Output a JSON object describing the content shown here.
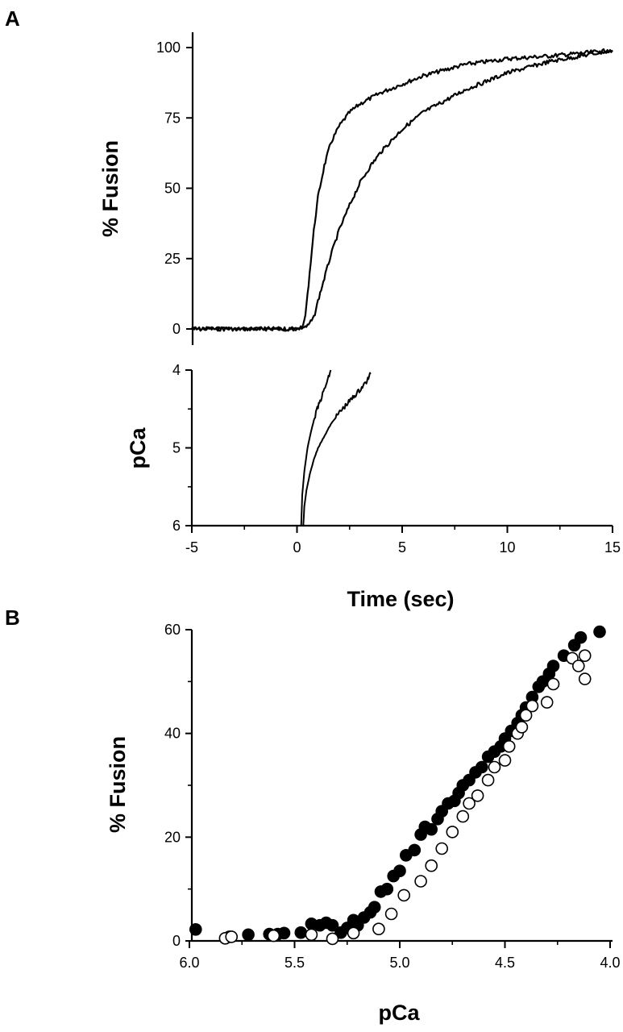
{
  "panel_labels": {
    "a": "A",
    "b": "B"
  },
  "chart_data": [
    {
      "id": "A-top",
      "type": "line",
      "ylabel": "% Fusion",
      "xlim": [
        -5,
        15
      ],
      "ylim": [
        0,
        100
      ],
      "yticks": [
        0,
        25,
        50,
        75,
        100
      ],
      "ytick_labels": [
        "0",
        "25",
        "50",
        "75",
        "100"
      ],
      "grid": false,
      "series": [
        {
          "x": [
            -5,
            -3,
            -1,
            0,
            0.3,
            0.4,
            0.5,
            0.6,
            0.8,
            1.0,
            1.3,
            1.6,
            2.0,
            2.5,
            3.0,
            4.0,
            5.0,
            6.0,
            7.0,
            8.0,
            9.0,
            10.0,
            12.0,
            15.0
          ],
          "y": [
            0,
            0,
            0,
            0,
            1,
            5,
            12,
            20,
            35,
            47,
            58,
            66,
            72,
            77,
            80,
            84,
            87,
            90,
            92,
            94,
            95,
            96,
            97,
            99
          ]
        },
        {
          "x": [
            -5,
            -3,
            -1,
            0,
            0.5,
            0.8,
            1.0,
            1.3,
            1.6,
            2.0,
            2.5,
            3.0,
            3.5,
            4.0,
            5.0,
            6.0,
            7.0,
            8.0,
            9.0,
            10.0,
            12.0,
            15.0
          ],
          "y": [
            0,
            0,
            0,
            0,
            1,
            4,
            10,
            18,
            26,
            35,
            44,
            52,
            58,
            63,
            71,
            77,
            81,
            85,
            88,
            91,
            95,
            99
          ]
        }
      ]
    },
    {
      "id": "A-bottom",
      "type": "line",
      "xlabel": "Time (sec)",
      "ylabel": "pCa",
      "xlim": [
        -5,
        15
      ],
      "ylim": [
        6,
        4
      ],
      "xticks": [
        -5,
        0,
        5,
        10,
        15
      ],
      "xtick_labels": [
        "-5",
        "0",
        "5",
        "10",
        "15"
      ],
      "yticks": [
        4,
        5,
        6
      ],
      "ytick_labels": [
        "4",
        "5",
        "6"
      ],
      "grid": false,
      "series": [
        {
          "x": [
            0.2,
            0.25,
            0.35,
            0.5,
            0.7,
            0.9,
            1.1,
            1.3,
            1.5,
            1.6
          ],
          "y": [
            6.0,
            5.6,
            5.3,
            5.0,
            4.75,
            4.55,
            4.4,
            4.25,
            4.1,
            4.0
          ]
        },
        {
          "x": [
            0.3,
            0.35,
            0.45,
            0.6,
            0.8,
            1.0,
            1.3,
            1.6,
            2.0,
            2.5,
            3.0,
            3.3,
            3.5
          ],
          "y": [
            6.0,
            5.75,
            5.55,
            5.35,
            5.15,
            5.0,
            4.85,
            4.7,
            4.55,
            4.4,
            4.25,
            4.15,
            4.05
          ]
        }
      ]
    },
    {
      "id": "B",
      "type": "scatter",
      "xlabel": "pCa",
      "ylabel": "% Fusion",
      "xlim": [
        6.0,
        4.0
      ],
      "ylim": [
        0,
        60
      ],
      "xticks": [
        6.0,
        5.5,
        5.0,
        4.5,
        4.0
      ],
      "xtick_labels": [
        "6.0",
        "5.5",
        "5.0",
        "4.5",
        "4.0"
      ],
      "yticks": [
        0,
        20,
        40,
        60
      ],
      "ytick_labels": [
        "0",
        "20",
        "40",
        "60"
      ],
      "grid": false,
      "series": [
        {
          "marker": "filled-circle",
          "x": [
            5.97,
            5.81,
            5.72,
            5.62,
            5.58,
            5.55,
            5.47,
            5.42,
            5.38,
            5.35,
            5.32,
            5.28,
            5.25,
            5.22,
            5.2,
            5.17,
            5.14,
            5.12,
            5.09,
            5.06,
            5.03,
            5.0,
            4.97,
            4.93,
            4.9,
            4.88,
            4.85,
            4.82,
            4.8,
            4.77,
            4.74,
            4.72,
            4.7,
            4.67,
            4.64,
            4.61,
            4.58,
            4.55,
            4.52,
            4.5,
            4.47,
            4.44,
            4.42,
            4.4,
            4.37,
            4.34,
            4.32,
            4.29,
            4.27,
            4.22,
            4.17,
            4.14,
            4.05
          ],
          "y": [
            2.2,
            0.8,
            1.2,
            1.3,
            1.3,
            1.5,
            1.6,
            3.3,
            3.0,
            3.5,
            3.0,
            1.6,
            2.5,
            4.0,
            3.0,
            4.5,
            5.5,
            6.5,
            9.5,
            10.0,
            12.5,
            13.5,
            16.5,
            17.5,
            20.5,
            22.0,
            21.5,
            23.5,
            25.0,
            26.5,
            27.0,
            28.5,
            30.0,
            31.0,
            32.5,
            33.5,
            35.5,
            36.5,
            37.5,
            39.0,
            40.5,
            42.0,
            43.5,
            45.0,
            47.0,
            49.0,
            50.0,
            51.5,
            53.0,
            55.0,
            57.0,
            58.5,
            59.6
          ]
        },
        {
          "marker": "open-circle",
          "x": [
            5.83,
            5.8,
            5.6,
            5.42,
            5.32,
            5.22,
            5.1,
            5.04,
            4.98,
            4.9,
            4.85,
            4.8,
            4.75,
            4.7,
            4.67,
            4.63,
            4.58,
            4.55,
            4.5,
            4.48,
            4.44,
            4.42,
            4.4,
            4.37,
            4.3,
            4.27,
            4.18,
            4.15,
            4.12,
            4.12
          ],
          "y": [
            0.5,
            0.8,
            1.0,
            1.2,
            0.4,
            1.5,
            2.3,
            5.2,
            8.8,
            11.5,
            14.5,
            17.8,
            21.0,
            24.0,
            26.5,
            28.0,
            31.0,
            33.5,
            34.8,
            37.5,
            40.0,
            41.2,
            43.5,
            45.3,
            46.0,
            49.5,
            54.5,
            53.0,
            50.5,
            55.0
          ]
        }
      ]
    }
  ]
}
